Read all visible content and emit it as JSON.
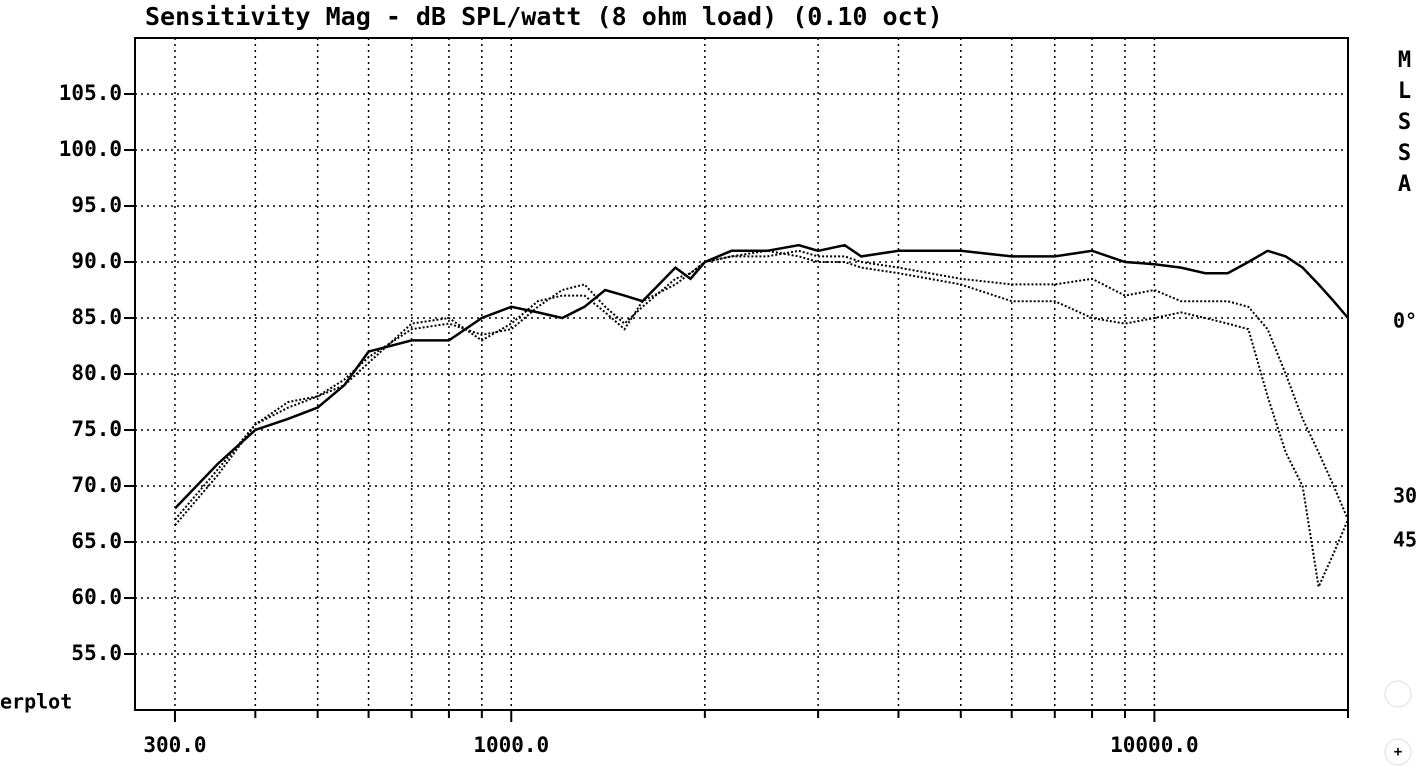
{
  "chart_data": {
    "type": "line",
    "title": "Sensitivity Mag - dB SPL/watt (8 ohm load) (0.10 oct)",
    "brand": "MLSSA",
    "corner_label": "erplot",
    "log_x": true,
    "grid": true,
    "xlim": [
      260,
      20000
    ],
    "ylim": [
      50,
      110
    ],
    "xticks": [
      {
        "value": 300,
        "label": "300.0"
      },
      {
        "value": 1000,
        "label": "1000.0"
      },
      {
        "value": 10000,
        "label": "10000.0"
      }
    ],
    "xminor_ticks": [
      400,
      500,
      600,
      700,
      800,
      900,
      2000,
      3000,
      4000,
      5000,
      6000,
      7000,
      8000,
      9000,
      20000
    ],
    "yticks": [
      {
        "value": 55,
        "label": "55.0"
      },
      {
        "value": 60,
        "label": "60.0"
      },
      {
        "value": 65,
        "label": "65.0"
      },
      {
        "value": 70,
        "label": "70.0"
      },
      {
        "value": 75,
        "label": "75.0"
      },
      {
        "value": 80,
        "label": "80.0"
      },
      {
        "value": 85,
        "label": "85.0"
      },
      {
        "value": 90,
        "label": "90.0"
      },
      {
        "value": 95,
        "label": "95.0"
      },
      {
        "value": 100,
        "label": "100.0"
      },
      {
        "value": 105,
        "label": "105.0"
      }
    ],
    "x": [
      300,
      350,
      400,
      450,
      500,
      550,
      600,
      700,
      800,
      900,
      1000,
      1100,
      1200,
      1300,
      1400,
      1500,
      1600,
      1800,
      1900,
      2000,
      2200,
      2500,
      2800,
      3000,
      3300,
      3500,
      4000,
      5000,
      6000,
      7000,
      8000,
      9000,
      10000,
      11000,
      12000,
      13000,
      14000,
      15000,
      16000,
      17000,
      18000,
      19000,
      20000
    ],
    "series": [
      {
        "name": "0°",
        "color": "#000000",
        "style": "solid",
        "values": [
          68,
          72,
          75,
          76,
          77,
          79,
          82,
          83,
          83,
          85,
          86,
          85.5,
          85,
          86,
          87.5,
          87,
          86.5,
          89.5,
          88.5,
          90,
          91,
          91,
          91.5,
          91,
          91.5,
          90.5,
          91,
          91,
          90.5,
          90.5,
          91,
          90,
          89.8,
          89.5,
          89,
          89,
          90,
          91,
          90.5,
          89.5,
          88,
          86.5,
          85
        ]
      },
      {
        "name": "30",
        "color": "#000000",
        "style": "dotted",
        "values": [
          67,
          71.5,
          75.5,
          77,
          78,
          79.5,
          81.5,
          84,
          84.5,
          83.5,
          84,
          86,
          87.5,
          88,
          86,
          84.5,
          86,
          88.5,
          89,
          90,
          90.5,
          90.5,
          91,
          90.5,
          90.5,
          90,
          89.5,
          88.5,
          88,
          88,
          88.5,
          87,
          87.5,
          86.5,
          86.5,
          86.5,
          86,
          84,
          80,
          76,
          73,
          70,
          67
        ]
      },
      {
        "name": "45",
        "color": "#000000",
        "style": "dotted",
        "values": [
          66.5,
          71,
          75.5,
          77.5,
          78,
          79,
          81,
          84.5,
          85,
          83,
          84.5,
          86.5,
          87,
          87,
          85.5,
          84,
          86.5,
          88,
          89,
          90,
          90.5,
          91,
          90.5,
          90,
          90,
          89.5,
          89,
          88,
          86.5,
          86.5,
          85,
          84.5,
          85,
          85.5,
          85,
          84.5,
          84,
          78,
          73,
          70,
          61,
          64,
          67
        ]
      }
    ]
  }
}
